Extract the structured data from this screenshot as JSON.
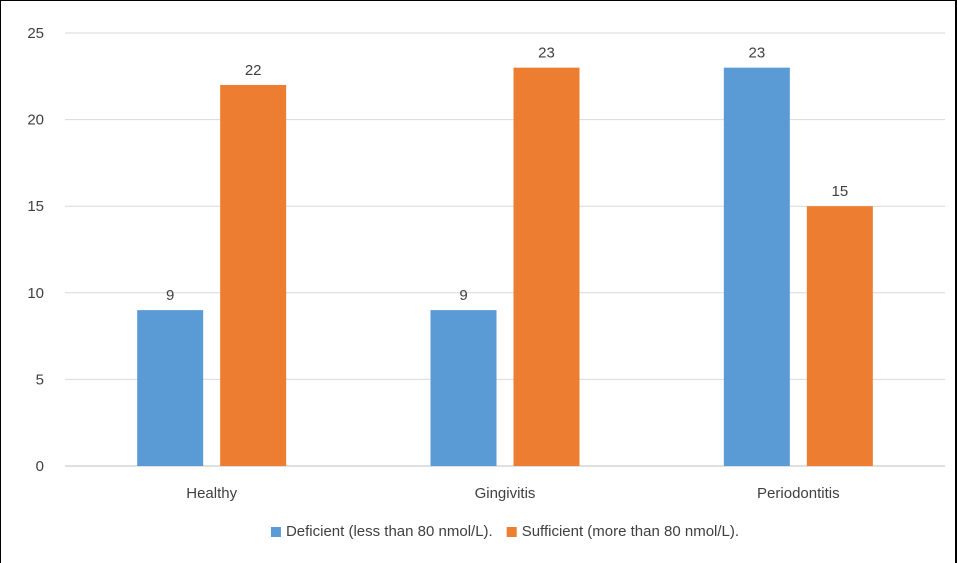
{
  "chart_data": {
    "type": "bar",
    "title": "",
    "xlabel": "",
    "ylabel": "",
    "categories": [
      "Healthy",
      "Gingivitis",
      "Periodontitis"
    ],
    "series": [
      {
        "name": "Deficient (less than 80 nmol/L).",
        "values": [
          9,
          9,
          23
        ],
        "color": "#5B9BD5"
      },
      {
        "name": "Sufficient (more than 80 nmol/L).",
        "values": [
          22,
          23,
          15
        ],
        "color": "#ED7D31"
      }
    ],
    "ylim": [
      0,
      25
    ],
    "yticks": [
      0,
      5,
      10,
      15,
      20,
      25
    ],
    "grid": true,
    "data_labels": true,
    "legend_position": "bottom"
  }
}
